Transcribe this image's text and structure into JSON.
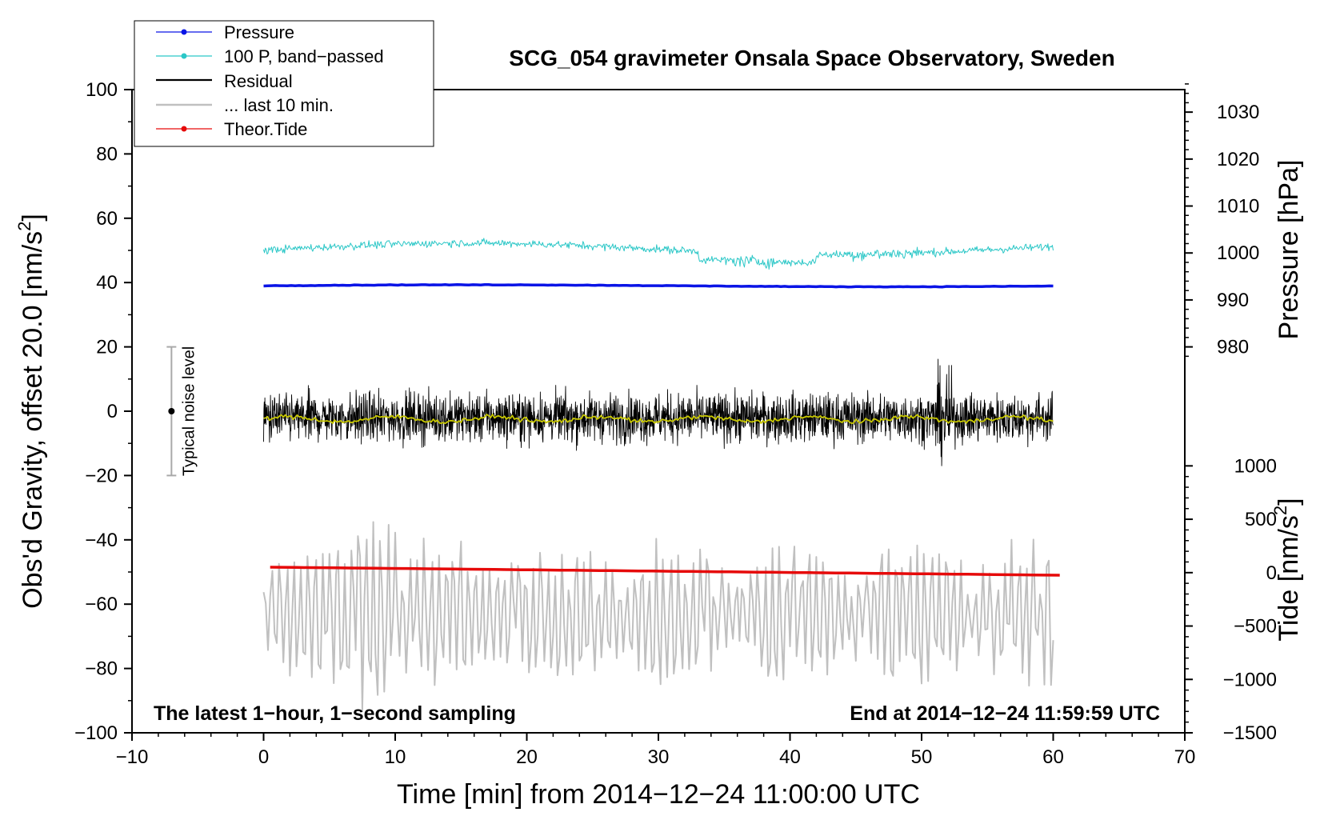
{
  "chart_data": {
    "type": "line",
    "title": "SCG_054 gravimeter Onsala Space Observatory, Sweden",
    "xlabel": "Time [min] from 2014−12−24 11:00:00 UTC",
    "ylabel_main": "Obs'd Gravity, offset 20.0 [nm/s",
    "ylabel_main_sup": "2",
    "ylabel_main_tail": "]",
    "ylabel_pressure": "Pressure [hPa]",
    "ylabel_tide": "Tide [nm/s",
    "ylabel_tide_sup": "2",
    "ylabel_tide_tail": "]",
    "xlim": [
      -10,
      70
    ],
    "ylim": [
      -100,
      100
    ],
    "x_ticks": [
      -10,
      0,
      10,
      20,
      30,
      40,
      50,
      60,
      70
    ],
    "x_tick_labels": [
      "−10",
      "0",
      "10",
      "20",
      "30",
      "40",
      "50",
      "60",
      "70"
    ],
    "y_ticks": [
      -100,
      -80,
      -60,
      -40,
      -20,
      0,
      20,
      40,
      60,
      80,
      100
    ],
    "y_tick_labels": [
      "−100",
      "−80",
      "−60",
      "−40",
      "−20",
      "0",
      "20",
      "40",
      "60",
      "80",
      "100"
    ],
    "pressure_axis": {
      "ticks": [
        980,
        990,
        1000,
        1010,
        1020,
        1030
      ],
      "tick_labels": [
        "980",
        "990",
        "1000",
        "1010",
        "1020",
        "1030"
      ],
      "y_at_980": 20,
      "y_at_1030": 93
    },
    "tide_axis": {
      "ticks": [
        -1500,
        -1000,
        -500,
        0,
        500,
        1000
      ],
      "tick_labels": [
        "−1500",
        "−1000",
        "−500",
        "0",
        "500",
        "1000"
      ],
      "y_at_minus1500": -100,
      "y_at_1000": -17
    },
    "annotations": {
      "bottom_left": "The latest 1−hour, 1−second sampling",
      "bottom_right": "End at 2014−12−24 11:59:59 UTC",
      "noise_label": "Typical noise level",
      "noise_bar": {
        "x": -7,
        "center": 0,
        "low": -20,
        "high": 20
      }
    },
    "legend": {
      "position": "top-left",
      "entries": [
        "Pressure",
        "100 P, band−passed",
        "Residual",
        "... last 10 min.",
        "Theor.Tide"
      ]
    },
    "series": [
      {
        "name": "Pressure",
        "color": "#0a14e6",
        "x_range": [
          0,
          60
        ],
        "mean_value": 39,
        "noise": 0.4
      },
      {
        "name": "100 P, band−passed",
        "color": "#2bc7c7",
        "x_range": [
          0,
          60
        ],
        "mean_value": 50.5,
        "noise": 3.5
      },
      {
        "name": "Residual",
        "color": "#000000",
        "x_range": [
          0,
          60
        ],
        "mean_value": -2,
        "noise": 17
      },
      {
        "name": "Residual smoothed",
        "color": "#c8c800",
        "x_range": [
          0,
          60
        ],
        "mean_value": -2.5,
        "noise": 1.2
      },
      {
        "name": "... last 10 min.",
        "color": "#c0c0c0",
        "x_range": [
          0,
          60
        ],
        "mean_value": -63,
        "noise": 28
      },
      {
        "name": "Theor.Tide",
        "color": "#e60a0a",
        "x": [
          0.5,
          60.5
        ],
        "values": [
          -48.5,
          -51
        ]
      }
    ],
    "colors": {
      "pressure": "#0a14e6",
      "bandpassed": "#2bc7c7",
      "residual": "#000000",
      "smoothed": "#c8c800",
      "last10": "#c0c0c0",
      "tide": "#e60a0a"
    }
  }
}
